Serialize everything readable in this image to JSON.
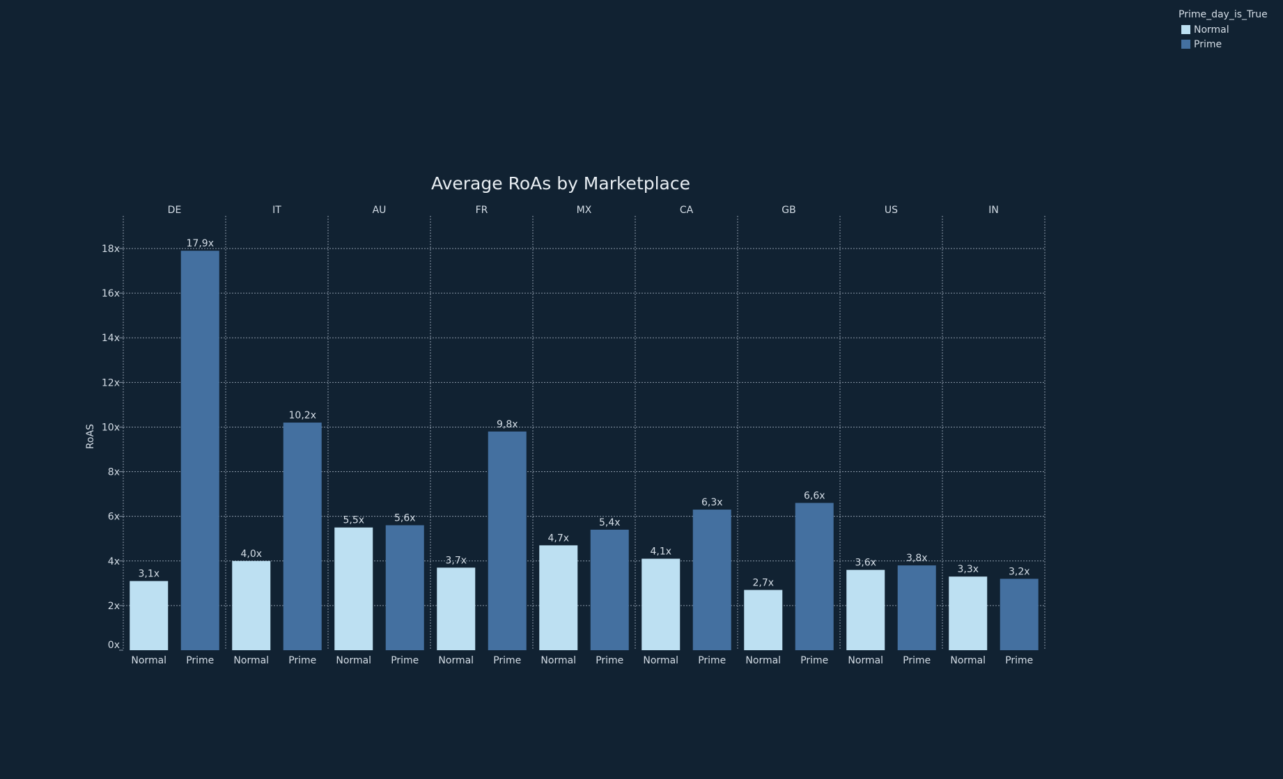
{
  "colors": {
    "background": "#112232",
    "normal": "#bde0f2",
    "prime": "#4470a0",
    "text": "#d4dde6",
    "grid": "#8a98a8"
  },
  "legend": {
    "title": "Prime_day_is_True",
    "items": [
      {
        "label": "Normal",
        "color": "#bde0f2"
      },
      {
        "label": "Prime",
        "color": "#4470a0"
      }
    ]
  },
  "chart_data": {
    "type": "bar",
    "title": "Average RoAs by Marketplace",
    "ylabel": "RoAS",
    "xlabel": "",
    "ylim": [
      0,
      19.5
    ],
    "yticks": [
      0,
      2,
      4,
      6,
      8,
      10,
      12,
      14,
      16,
      18
    ],
    "ytick_labels": [
      "0x",
      "2x",
      "4x",
      "6x",
      "8x",
      "10x",
      "12x",
      "14x",
      "16x",
      "18x"
    ],
    "grid": true,
    "legend_position": "top-right",
    "categories": [
      "DE",
      "IT",
      "AU",
      "FR",
      "MX",
      "CA",
      "GB",
      "US",
      "IN"
    ],
    "sub_categories": [
      "Normal",
      "Prime"
    ],
    "series": [
      {
        "name": "Normal",
        "values": [
          3.1,
          4.0,
          5.5,
          3.7,
          4.7,
          4.1,
          2.7,
          3.6,
          3.3
        ],
        "labels": [
          "3,1x",
          "4,0x",
          "5,5x",
          "3,7x",
          "4,7x",
          "4,1x",
          "2,7x",
          "3,6x",
          "3,3x"
        ]
      },
      {
        "name": "Prime",
        "values": [
          17.9,
          10.2,
          5.6,
          9.8,
          5.4,
          6.3,
          6.6,
          3.8,
          3.2
        ],
        "labels": [
          "17,9x",
          "10,2x",
          "5,6x",
          "9,8x",
          "5,4x",
          "6,3x",
          "6,6x",
          "3,8x",
          "3,2x"
        ]
      }
    ]
  }
}
